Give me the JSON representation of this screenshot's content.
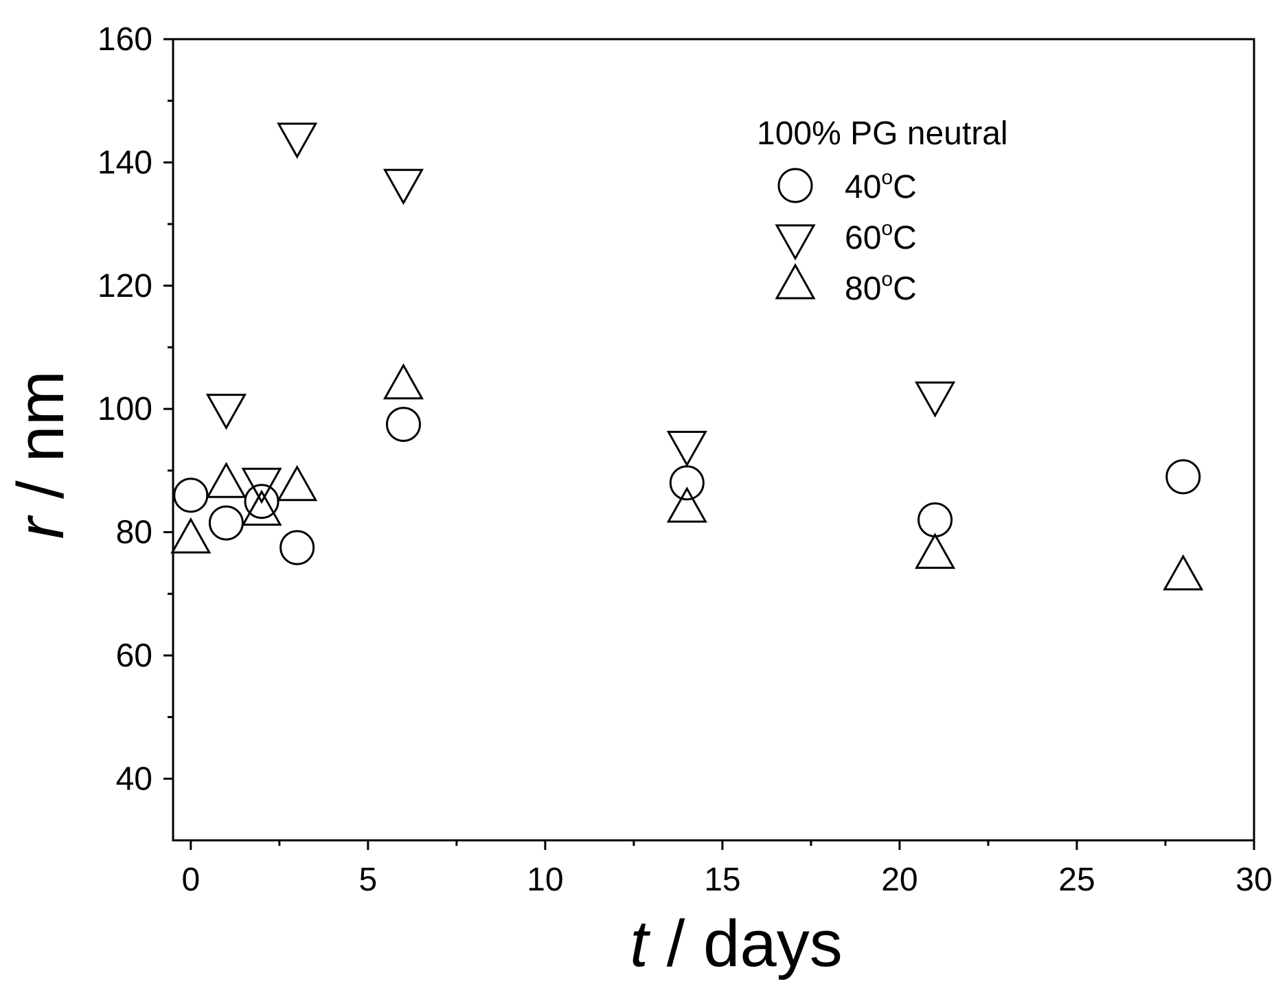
{
  "chart_data": {
    "type": "scatter",
    "title": "",
    "xlabel": {
      "italic": "t",
      "rest": " / days"
    },
    "ylabel": {
      "italic": "r",
      "rest": " / nm"
    },
    "xlim": [
      -0.5,
      30
    ],
    "ylim": [
      30,
      160
    ],
    "x_ticks": [
      0,
      5,
      10,
      15,
      20,
      25,
      30
    ],
    "y_ticks": [
      40,
      60,
      80,
      100,
      120,
      140,
      160
    ],
    "x_minor_ticks": [
      2.5,
      7.5,
      12.5,
      17.5,
      22.5,
      27.5
    ],
    "y_minor_ticks": [
      50,
      70,
      90,
      110,
      130,
      150
    ],
    "grid": false,
    "legend": {
      "title": "100% PG neutral",
      "placement": "top-right"
    },
    "series": [
      {
        "name": "40°C",
        "label_main": "40",
        "label_sup": "o",
        "label_tail": "C",
        "marker": "circle",
        "x": [
          0,
          1,
          2,
          3,
          6,
          14,
          21,
          28
        ],
        "y": [
          86,
          81.5,
          85,
          77.5,
          97.5,
          88,
          82,
          89
        ]
      },
      {
        "name": "60°C",
        "label_main": "60",
        "label_sup": "o",
        "label_tail": "C",
        "marker": "triangle-down",
        "x": [
          1,
          2,
          3,
          6,
          14,
          21
        ],
        "y": [
          100.5,
          88.5,
          144.5,
          137,
          94.5,
          102.5
        ]
      },
      {
        "name": "80°C",
        "label_main": "80",
        "label_sup": "o",
        "label_tail": "C",
        "marker": "triangle-up",
        "x": [
          0,
          1,
          2,
          3,
          6,
          14,
          21,
          28
        ],
        "y": [
          78.5,
          87.5,
          83,
          87,
          103.5,
          83.5,
          76,
          72.5
        ]
      }
    ]
  }
}
